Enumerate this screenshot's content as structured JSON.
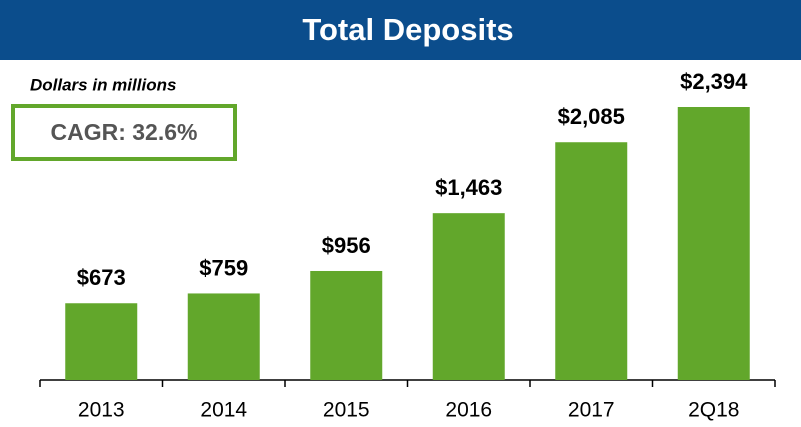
{
  "chart_data": {
    "type": "bar",
    "title": "Total Deposits",
    "subtitle": "Dollars in millions",
    "annotation": "CAGR: 32.6%",
    "categories": [
      "2013",
      "2014",
      "2015",
      "2016",
      "2017",
      "2Q18"
    ],
    "values": [
      673,
      759,
      956,
      1463,
      2085,
      2394
    ],
    "value_labels": [
      "$673",
      "$759",
      "$956",
      "$1,463",
      "$2,085",
      "$2,394"
    ],
    "color": "#62a72b"
  }
}
